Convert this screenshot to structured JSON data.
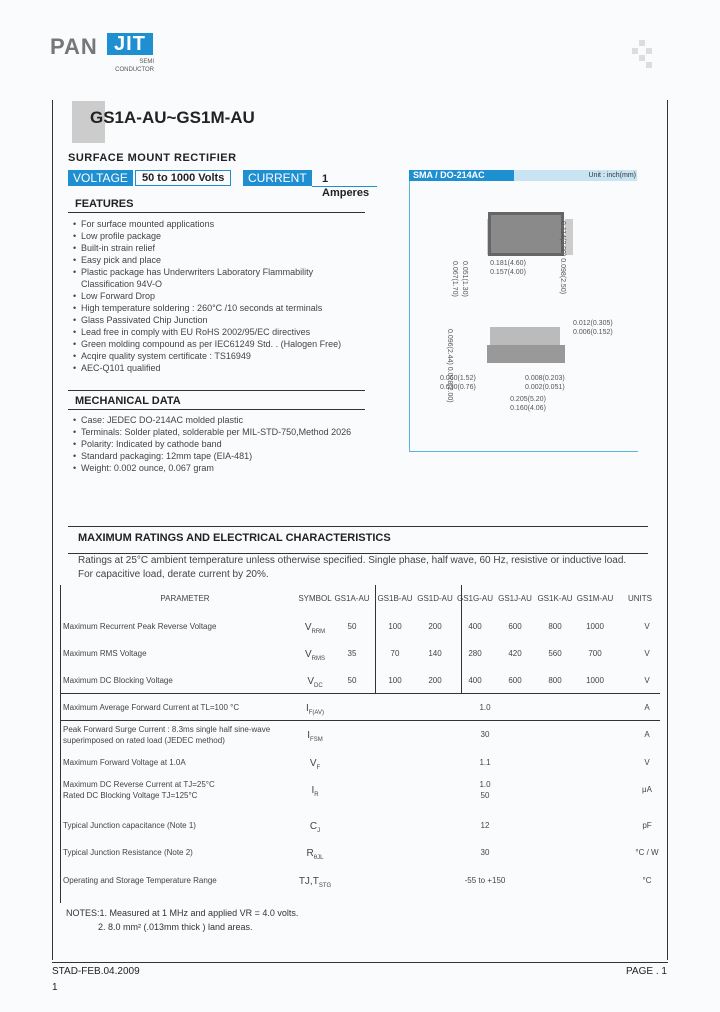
{
  "logo": {
    "text_left": "PAN",
    "text_right": "JIT",
    "sub1": "SEMI",
    "sub2": "CONDUCTOR"
  },
  "title": "GS1A-AU~GS1M-AU",
  "subtitle": "SURFACE  MOUNT  RECTIFIER",
  "voltage_label": "VOLTAGE",
  "voltage_value": "50 to 1000 Volts",
  "current_label": "CURRENT",
  "current_value": "1 Amperes",
  "package": {
    "name": "SMA / DO-214AC",
    "unit": "Unit : inch(mm)",
    "dims": [
      "0.181(4.60)",
      "0.157(4.00)",
      "0.114(2.90)",
      "0.098(2.50)",
      "0.067(1.70)",
      "0.051(1.30)",
      "0.012(0.305)",
      "0.006(0.152)",
      "0.096(2.44)",
      "0.078(2.00)",
      "0.060(1.52)",
      "0.030(0.76)",
      "0.008(0.203)",
      "0.002(0.051)",
      "0.205(5.20)",
      "0.160(4.06)"
    ]
  },
  "features": {
    "title": "FEATURES",
    "items": [
      "For surface mounted applications",
      "Low profile package",
      "Built-in strain relief",
      "Easy pick and place",
      "Plastic package has Underwriters Laboratory Flammability",
      "Classification 94V-O",
      "Low Forward Drop",
      "High temperature soldering : 260°C /10 seconds at terminals",
      "Glass Passivated Chip Junction",
      "Lead free in comply with EU RoHS 2002/95/EC directives",
      "Green molding compound as per IEC61249 Std. . (Halogen Free)",
      "Acqire quality system certificate : TS16949",
      "AEC-Q101 qualified"
    ]
  },
  "mechanical": {
    "title": "MECHANICAL DATA",
    "items": [
      "Case: JEDEC DO-214AC molded plastic",
      "Terminals: Solder plated, solderable per MIL-STD-750,Method 2026",
      "Polarity: Indicated by cathode band",
      "Standard packaging: 12mm tape (EIA-481)",
      "Weight: 0.002 ounce, 0.067 gram"
    ]
  },
  "ratings": {
    "title": "MAXIMUM RATINGS AND ELECTRICAL CHARACTERISTICS",
    "note1": "Ratings at 25°C ambient temperature unless otherwise specified. Single phase, half wave, 60 Hz, resistive or inductive load.",
    "note2": "For capacitive load, derate current by 20%.",
    "headers": [
      "PARAMETER",
      "SYMBOL",
      "GS1A-AU",
      "GS1B-AU",
      "GS1D-AU",
      "GS1G-AU",
      "GS1J-AU",
      "GS1K-AU",
      "GS1M-AU",
      "UNITS"
    ],
    "rows": [
      {
        "param": "Maximum Recurrent Peak Reverse Voltage",
        "sym": "V",
        "sub": "RRM",
        "vals": [
          "50",
          "100",
          "200",
          "400",
          "600",
          "800",
          "1000"
        ],
        "unit": "V"
      },
      {
        "param": "Maximum RMS Voltage",
        "sym": "V",
        "sub": "RMS",
        "vals": [
          "35",
          "70",
          "140",
          "280",
          "420",
          "560",
          "700"
        ],
        "unit": "V"
      },
      {
        "param": "Maximum DC Blocking Voltage",
        "sym": "V",
        "sub": "DC",
        "vals": [
          "50",
          "100",
          "200",
          "400",
          "600",
          "800",
          "1000"
        ],
        "unit": "V"
      },
      {
        "param": "Maximum Average Forward Current at TL=100 °C",
        "sym": "I",
        "sub": "F(AV)",
        "value": "1.0",
        "unit": "A"
      },
      {
        "param": "Peak Forward Surge Current : 8.3ms single half sine-wave",
        "param2": "superimposed on rated load (JEDEC method)",
        "sym": "I",
        "sub": "FSM",
        "value": "30",
        "unit": "A"
      },
      {
        "param": "Maximum Forward Voltage at 1.0A",
        "sym": "V",
        "sub": "F",
        "value": "1.1",
        "unit": "V"
      },
      {
        "param": "Maximum DC Reverse Current at TJ=25°C",
        "param2": "Rated DC Blocking Voltage  TJ=125°C",
        "sym": "I",
        "sub": "R",
        "value": "1.0",
        "value2": "50",
        "unit": "μA"
      },
      {
        "param": "Typical Junction capacitance (Note 1)",
        "sym": "C",
        "sub": "J",
        "value": "12",
        "unit": "pF"
      },
      {
        "param": "Typical Junction Resistance (Note 2)",
        "sym": "R",
        "sub": "θJL",
        "value": "30",
        "unit": "°C / W"
      },
      {
        "param": "Operating and Storage Temperature Range",
        "sym": "TJ,T",
        "sub": "STG",
        "value": "-55 to +150",
        "unit": "°C"
      }
    ]
  },
  "notes": [
    "NOTES:1. Measured at 1 MHz and applied VR = 4.0 volts.",
    "2. 8.0 mm² (.013mm thick ) land areas."
  ],
  "footer": {
    "doc": "STAD-FEB.04.2009",
    "page": "PAGE . 1",
    "num": "1"
  }
}
